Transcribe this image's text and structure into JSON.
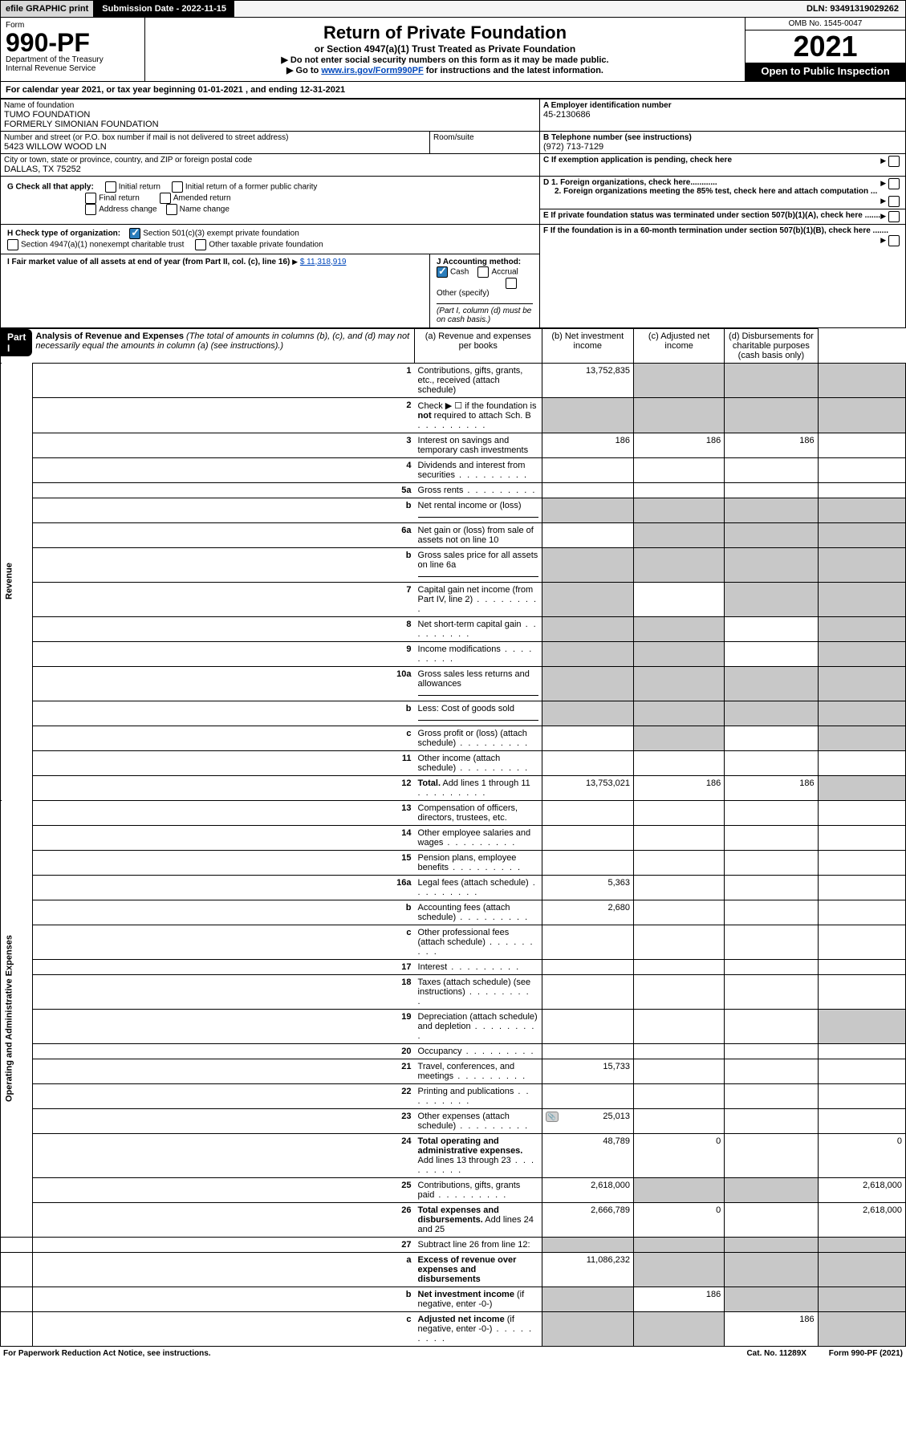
{
  "top": {
    "efile": "efile GRAPHIC print",
    "submission": "Submission Date - 2022-11-15",
    "dln": "DLN: 93491319029262"
  },
  "header": {
    "form_label": "Form",
    "form_number": "990-PF",
    "dept": "Department of the Treasury",
    "irs": "Internal Revenue Service",
    "title": "Return of Private Foundation",
    "subtitle": "or Section 4947(a)(1) Trust Treated as Private Foundation",
    "note1": "▶ Do not enter social security numbers on this form as it may be made public.",
    "note2_pre": "▶ Go to ",
    "note2_link": "www.irs.gov/Form990PF",
    "note2_post": " for instructions and the latest information.",
    "omb": "OMB No. 1545-0047",
    "year": "2021",
    "open": "Open to Public Inspection"
  },
  "cal_year": "For calendar year 2021, or tax year beginning 01-01-2021                    , and ending 12-31-2021",
  "info": {
    "name_lbl": "Name of foundation",
    "name1": "TUMO FOUNDATION",
    "name2": "FORMERLY SIMONIAN FOUNDATION",
    "addr_lbl": "Number and street (or P.O. box number if mail is not delivered to street address)",
    "addr": "5423 WILLOW WOOD LN",
    "room_lbl": "Room/suite",
    "city_lbl": "City or town, state or province, country, and ZIP or foreign postal code",
    "city": "DALLAS, TX  75252",
    "ein_lbl": "A Employer identification number",
    "ein": "45-2130686",
    "tel_lbl": "B Telephone number (see instructions)",
    "tel": "(972) 713-7129",
    "c_lbl": "C If exemption application is pending, check here",
    "d1": "D 1. Foreign organizations, check here............",
    "d2": "2. Foreign organizations meeting the 85% test, check here and attach computation ...",
    "e_lbl": "E  If private foundation status was terminated under section 507(b)(1)(A), check here .......",
    "f_lbl": "F  If the foundation is in a 60-month termination under section 507(b)(1)(B), check here .......",
    "g_lbl": "G Check all that apply:",
    "g_initial": "Initial return",
    "g_initial_former": "Initial return of a former public charity",
    "g_final": "Final return",
    "g_amended": "Amended return",
    "g_addr": "Address change",
    "g_name": "Name change",
    "h_lbl": "H Check type of organization:",
    "h_501c3": "Section 501(c)(3) exempt private foundation",
    "h_4947": "Section 4947(a)(1) nonexempt charitable trust",
    "h_other_tax": "Other taxable private foundation",
    "i_lbl": "I Fair market value of all assets at end of year (from Part II, col. (c), line 16)",
    "i_val": "$  11,318,919",
    "j_lbl": "J Accounting method:",
    "j_cash": "Cash",
    "j_accrual": "Accrual",
    "j_other": "Other (specify)",
    "j_note": "(Part I, column (d) must be on cash basis.)"
  },
  "part1": {
    "label": "Part I",
    "title": "Analysis of Revenue and Expenses",
    "title_note": "(The total of amounts in columns (b), (c), and (d) may not necessarily equal the amounts in column (a) (see instructions).)",
    "cols": {
      "a": "(a)   Revenue and expenses per books",
      "b": "(b)   Net investment income",
      "c": "(c)   Adjusted net income",
      "d": "(d)   Disbursements for charitable purposes (cash basis only)"
    }
  },
  "sections": {
    "revenue": "Revenue",
    "expenses": "Operating and Administrative Expenses"
  },
  "rows": [
    {
      "n": "1",
      "desc": "Contributions, gifts, grants, etc., received (attach schedule)",
      "a": "13,752,835",
      "sec": "rev",
      "grey_bcd": true
    },
    {
      "n": "2",
      "desc": "Check ▶ ☐ if the foundation is <b>not</b> required to attach Sch. B",
      "dots": true,
      "sec": "rev",
      "grey_a": true,
      "grey_bcd": true
    },
    {
      "n": "3",
      "desc": "Interest on savings and temporary cash investments",
      "a": "186",
      "b": "186",
      "c": "186",
      "sec": "rev"
    },
    {
      "n": "4",
      "desc": "Dividends and interest from securities",
      "dots": true,
      "sec": "rev"
    },
    {
      "n": "5a",
      "desc": "Gross rents",
      "dots": true,
      "sec": "rev"
    },
    {
      "n": "b",
      "desc": "Net rental income or (loss)",
      "underline": true,
      "sec": "rev",
      "grey_abcd": true
    },
    {
      "n": "6a",
      "desc": "Net gain or (loss) from sale of assets not on line 10",
      "sec": "rev",
      "grey_bcd": true
    },
    {
      "n": "b",
      "desc": "Gross sales price for all assets on line 6a",
      "underline": true,
      "sec": "rev",
      "grey_abcd": true
    },
    {
      "n": "7",
      "desc": "Capital gain net income (from Part IV, line 2)",
      "dots": true,
      "sec": "rev",
      "grey_a": true,
      "grey_cd": true
    },
    {
      "n": "8",
      "desc": "Net short-term capital gain",
      "dots": true,
      "sec": "rev",
      "grey_ab": true,
      "grey_d": true
    },
    {
      "n": "9",
      "desc": "Income modifications",
      "dots": true,
      "sec": "rev",
      "grey_ab": true,
      "grey_d": true
    },
    {
      "n": "10a",
      "desc": "Gross sales less returns and allowances",
      "underline": true,
      "sec": "rev",
      "grey_abcd": true
    },
    {
      "n": "b",
      "desc": "Less: Cost of goods sold",
      "dots": true,
      "underline": true,
      "sec": "rev",
      "grey_abcd": true
    },
    {
      "n": "c",
      "desc": "Gross profit or (loss) (attach schedule)",
      "dots": true,
      "sec": "rev",
      "grey_b": true,
      "grey_d": true
    },
    {
      "n": "11",
      "desc": "Other income (attach schedule)",
      "dots": true,
      "sec": "rev"
    },
    {
      "n": "12",
      "desc": "<b>Total.</b> Add lines 1 through 11",
      "dots": true,
      "a": "13,753,021",
      "b": "186",
      "c": "186",
      "sec": "rev",
      "grey_d": true
    },
    {
      "n": "13",
      "desc": "Compensation of officers, directors, trustees, etc.",
      "sec": "exp"
    },
    {
      "n": "14",
      "desc": "Other employee salaries and wages",
      "dots": true,
      "sec": "exp"
    },
    {
      "n": "15",
      "desc": "Pension plans, employee benefits",
      "dots": true,
      "sec": "exp"
    },
    {
      "n": "16a",
      "desc": "Legal fees (attach schedule)",
      "dots": true,
      "a": "5,363",
      "sec": "exp"
    },
    {
      "n": "b",
      "desc": "Accounting fees (attach schedule)",
      "dots": true,
      "a": "2,680",
      "sec": "exp"
    },
    {
      "n": "c",
      "desc": "Other professional fees (attach schedule)",
      "dots": true,
      "sec": "exp"
    },
    {
      "n": "17",
      "desc": "Interest",
      "dots": true,
      "sec": "exp"
    },
    {
      "n": "18",
      "desc": "Taxes (attach schedule) (see instructions)",
      "dots": true,
      "sec": "exp"
    },
    {
      "n": "19",
      "desc": "Depreciation (attach schedule) and depletion",
      "dots": true,
      "sec": "exp",
      "grey_d": true
    },
    {
      "n": "20",
      "desc": "Occupancy",
      "dots": true,
      "sec": "exp"
    },
    {
      "n": "21",
      "desc": "Travel, conferences, and meetings",
      "dots": true,
      "a": "15,733",
      "sec": "exp"
    },
    {
      "n": "22",
      "desc": "Printing and publications",
      "dots": true,
      "sec": "exp"
    },
    {
      "n": "23",
      "desc": "Other expenses (attach schedule)",
      "dots": true,
      "a": "25,013",
      "icon": true,
      "sec": "exp"
    },
    {
      "n": "24",
      "desc": "<b>Total operating and administrative expenses.</b> Add lines 13 through 23",
      "dots": true,
      "a": "48,789",
      "b": "0",
      "d": "0",
      "sec": "exp"
    },
    {
      "n": "25",
      "desc": "Contributions, gifts, grants paid",
      "dots": true,
      "a": "2,618,000",
      "d": "2,618,000",
      "sec": "exp",
      "grey_bc": true
    },
    {
      "n": "26",
      "desc": "<b>Total expenses and disbursements.</b> Add lines 24 and 25",
      "a": "2,666,789",
      "b": "0",
      "d": "2,618,000",
      "sec": "exp"
    },
    {
      "n": "27",
      "desc": "Subtract line 26 from line 12:",
      "sec": "none",
      "grey_abcd": true
    },
    {
      "n": "a",
      "desc": "<b>Excess of revenue over expenses and disbursements</b>",
      "a": "11,086,232",
      "sec": "none",
      "grey_bcd": true
    },
    {
      "n": "b",
      "desc": "<b>Net investment income</b> (if negative, enter -0-)",
      "b": "186",
      "sec": "none",
      "grey_a": true,
      "grey_cd": true
    },
    {
      "n": "c",
      "desc": "<b>Adjusted net income</b> (if negative, enter -0-)",
      "dots": true,
      "c": "186",
      "sec": "none",
      "grey_ab": true,
      "grey_d": true
    }
  ],
  "footer": {
    "left": "For Paperwork Reduction Act Notice, see instructions.",
    "mid": "Cat. No. 11289X",
    "right": "Form 990-PF (2021)"
  },
  "colors": {
    "link": "#0047bb",
    "grey_cell": "#c8c8c8",
    "check_blue": "#2b7dbb"
  }
}
